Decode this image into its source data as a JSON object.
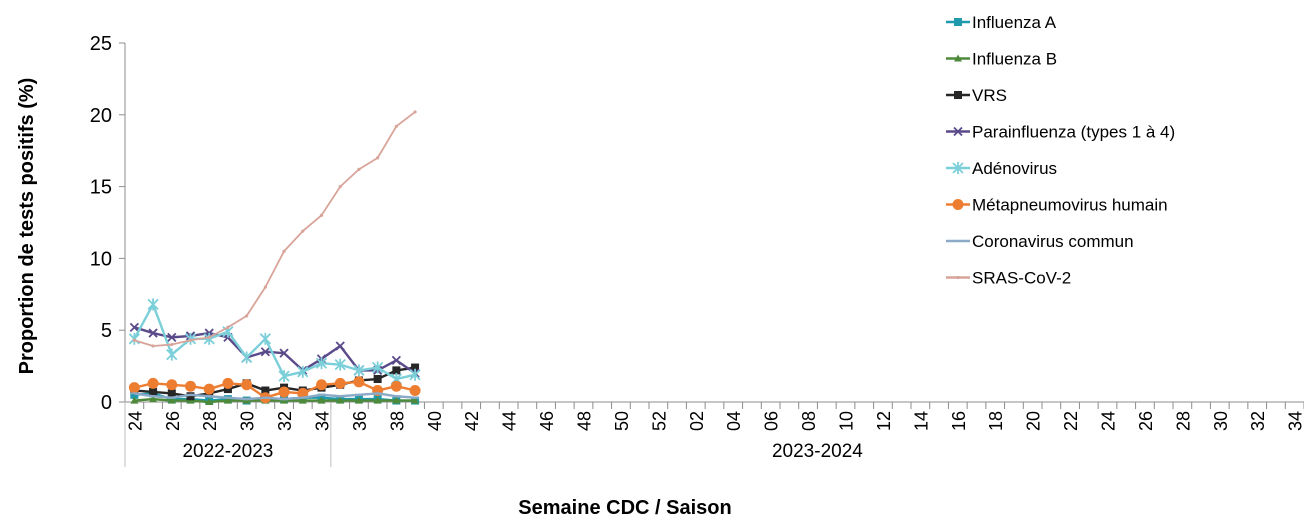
{
  "chart_data": {
    "type": "line",
    "ylabel": "Proportion de tests positifs (%)",
    "xlabel": "Semaine CDC / Saison",
    "ylim": [
      0,
      25
    ],
    "y_ticks": [
      "0",
      "5",
      "10",
      "15",
      "20",
      "25"
    ],
    "x_tick_labels": [
      "24",
      "26",
      "28",
      "30",
      "32",
      "34",
      "36",
      "38",
      "40",
      "42",
      "44",
      "46",
      "48",
      "50",
      "52",
      "02",
      "04",
      "06",
      "08",
      "10",
      "12",
      "14",
      "16",
      "18",
      "20",
      "22",
      "24",
      "26",
      "28",
      "30",
      "32",
      "34"
    ],
    "weeks_count": 63,
    "seasons": [
      {
        "label": "2022-2023",
        "start_week_index": 0,
        "end_week_index": 11
      },
      {
        "label": "2023-2024",
        "start_week_index": 11,
        "end_week_index": 63
      }
    ],
    "legend_position": "right",
    "grid": false,
    "series": [
      {
        "name": "Influenza A",
        "color": "#1F9AAD",
        "marker": "square",
        "values": [
          0.5,
          0.6,
          0.2,
          0.2,
          0.1,
          0.2,
          0.1,
          0.2,
          0.2,
          0.3,
          0.3,
          0.2,
          0.2,
          0.2,
          0.1,
          0.1
        ]
      },
      {
        "name": "Influenza B",
        "color": "#4E8A3A",
        "marker": "triangle",
        "values": [
          0.1,
          0.2,
          0.1,
          0.1,
          0.0,
          0.1,
          0.1,
          0.1,
          0.1,
          0.1,
          0.1,
          0.1,
          0.1,
          0.1,
          0.1,
          0.1
        ]
      },
      {
        "name": "VRS",
        "color": "#262626",
        "marker": "square",
        "values": [
          0.8,
          0.7,
          0.6,
          0.4,
          0.6,
          0.9,
          1.3,
          0.8,
          1.0,
          0.8,
          1.0,
          1.2,
          1.5,
          1.6,
          2.2,
          2.4
        ]
      },
      {
        "name": "Parainfluenza (types 1 à 4)",
        "color": "#5A4A8A",
        "marker": "x",
        "values": [
          5.2,
          4.8,
          4.5,
          4.6,
          4.8,
          4.5,
          3.1,
          3.5,
          3.4,
          2.2,
          3.0,
          3.9,
          2.2,
          2.2,
          2.9,
          2.0
        ]
      },
      {
        "name": "Adénovirus",
        "color": "#7BCFD9",
        "marker": "star",
        "values": [
          4.4,
          6.8,
          3.3,
          4.4,
          4.4,
          4.9,
          3.1,
          4.4,
          1.8,
          2.1,
          2.7,
          2.6,
          2.2,
          2.4,
          1.6,
          1.9
        ]
      },
      {
        "name": "Métapneumovirus humain",
        "color": "#ED7D31",
        "marker": "circle",
        "values": [
          1.0,
          1.3,
          1.2,
          1.1,
          0.9,
          1.3,
          1.2,
          0.3,
          0.7,
          0.6,
          1.2,
          1.3,
          1.4,
          0.8,
          1.1,
          0.8
        ]
      },
      {
        "name": "Coronavirus commun",
        "color": "#8AAAC8",
        "marker": "dash",
        "values": [
          0.6,
          0.4,
          0.3,
          0.5,
          0.4,
          0.3,
          0.2,
          0.3,
          0.2,
          0.3,
          0.5,
          0.4,
          0.5,
          0.6,
          0.4,
          0.3
        ]
      },
      {
        "name": "SRAS-CoV-2",
        "color": "#D8A49A",
        "marker": "dot",
        "values": [
          4.3,
          3.9,
          4.0,
          4.3,
          4.5,
          5.2,
          6.0,
          8.0,
          10.5,
          11.9,
          13.0,
          15.0,
          16.2,
          17.0,
          19.2,
          20.2
        ]
      }
    ]
  }
}
